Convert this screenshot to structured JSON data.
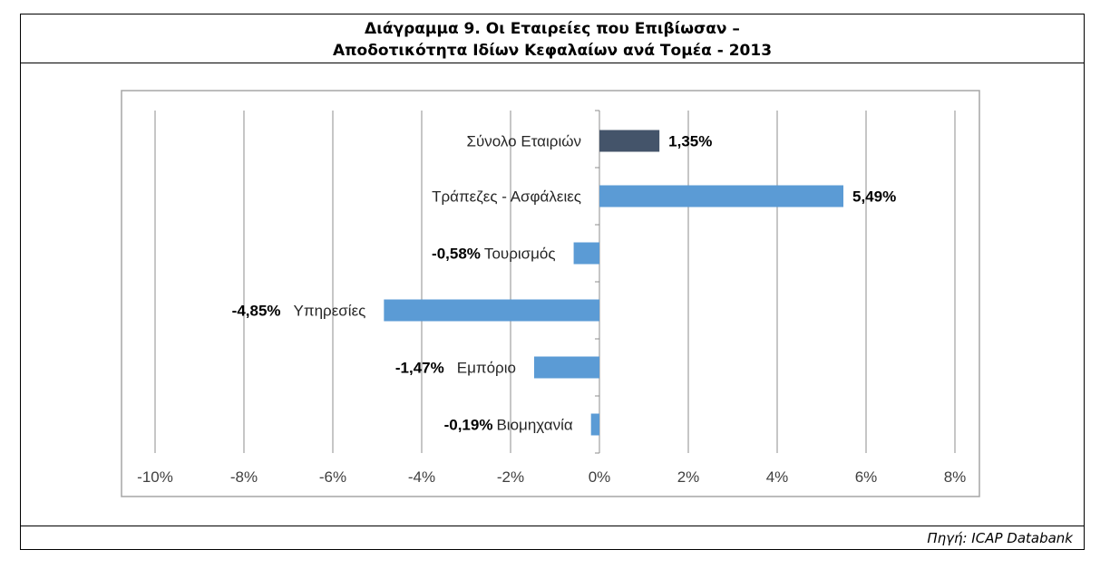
{
  "source": "Πηγή: ICAP Databank",
  "chart_data": {
    "type": "bar",
    "orientation": "horizontal",
    "title": [
      "Διάγραμμα 9. Οι Εταιρείες που Επιβίωσαν –",
      "Αποδοτικότητα Ιδίων Κεφαλαίων ανά Τομέα - 2013"
    ],
    "categories": [
      "Σύνολο Εταιριών",
      "Τράπεζες - Ασφάλειες",
      "Τουρισμός",
      "Υπηρεσίες",
      "Εμπόριο",
      "Βιομηχανία"
    ],
    "values": [
      1.35,
      5.49,
      -0.58,
      -4.85,
      -1.47,
      -0.19
    ],
    "data_labels": [
      "1,35%",
      "5,49%",
      "-0,58%",
      "-4,85%",
      "-1,47%",
      "-0,19%"
    ],
    "colors": [
      "#44546a",
      "#5b9bd5",
      "#5b9bd5",
      "#5b9bd5",
      "#5b9bd5",
      "#5b9bd5"
    ],
    "xlim": [
      -10,
      8
    ],
    "xticks": [
      "-10%",
      "-8%",
      "-6%",
      "-4%",
      "-2%",
      "0%",
      "2%",
      "4%",
      "6%",
      "8%"
    ],
    "xtick_values": [
      -10,
      -8,
      -6,
      -4,
      -2,
      0,
      2,
      4,
      6,
      8
    ],
    "grid": true,
    "xlabel": "",
    "ylabel": ""
  }
}
